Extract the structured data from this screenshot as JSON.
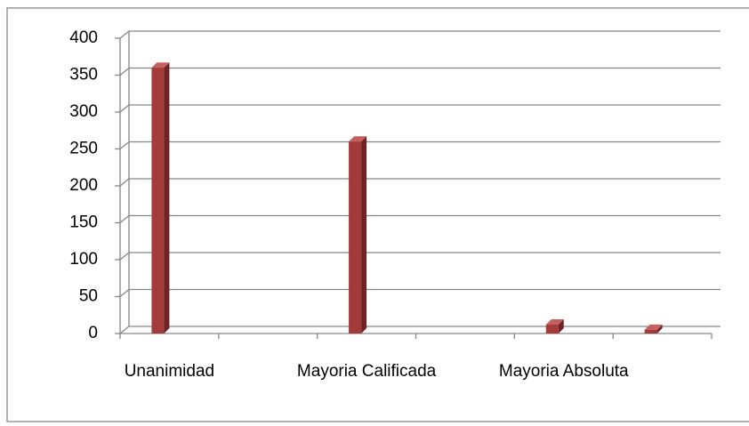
{
  "chart_data": {
    "type": "bar3d",
    "categories": [
      "Unanimidad",
      null,
      "Mayoria Calificada",
      null,
      "Mayoria Absoluta",
      null
    ],
    "values": [
      360,
      null,
      260,
      null,
      12,
      5
    ],
    "color": "#a33b3b",
    "ylim": [
      0,
      400
    ],
    "yticks": [
      0,
      50,
      100,
      150,
      200,
      250,
      300,
      350,
      400
    ],
    "grid": true
  }
}
